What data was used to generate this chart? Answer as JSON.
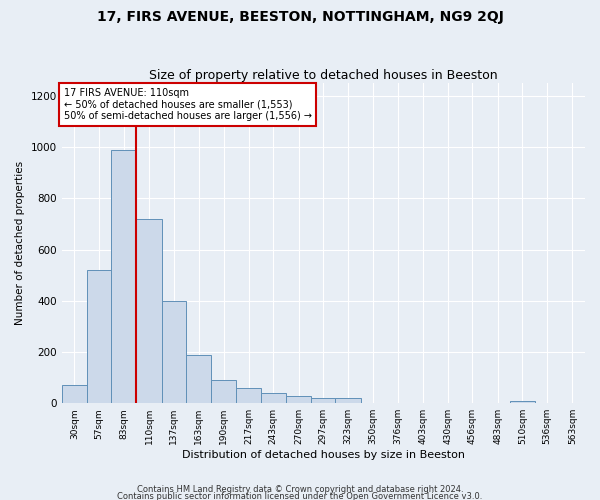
{
  "title": "17, FIRS AVENUE, BEESTON, NOTTINGHAM, NG9 2QJ",
  "subtitle": "Size of property relative to detached houses in Beeston",
  "xlabel": "Distribution of detached houses by size in Beeston",
  "ylabel": "Number of detached properties",
  "bar_color": "#ccd9ea",
  "bar_edge_color": "#6090b8",
  "background_color": "#e8eef5",
  "plot_bg_color": "#e8eef5",
  "grid_color": "#ffffff",
  "annotation_box_color": "#cc0000",
  "vline_color": "#cc0000",
  "bin_labels": [
    "30sqm",
    "57sqm",
    "83sqm",
    "110sqm",
    "137sqm",
    "163sqm",
    "190sqm",
    "217sqm",
    "243sqm",
    "270sqm",
    "297sqm",
    "323sqm",
    "350sqm",
    "376sqm",
    "403sqm",
    "430sqm",
    "456sqm",
    "483sqm",
    "510sqm",
    "536sqm",
    "563sqm"
  ],
  "bin_edges": [
    30,
    57,
    83,
    110,
    137,
    163,
    190,
    217,
    243,
    270,
    297,
    323,
    350,
    376,
    403,
    430,
    456,
    483,
    510,
    536,
    563,
    590
  ],
  "bar_heights": [
    70,
    520,
    990,
    720,
    400,
    190,
    90,
    60,
    40,
    30,
    20,
    20,
    0,
    0,
    0,
    0,
    0,
    0,
    10,
    0,
    0
  ],
  "vline_x": 110,
  "ylim": [
    0,
    1250
  ],
  "yticks": [
    0,
    200,
    400,
    600,
    800,
    1000,
    1200
  ],
  "annotation_title": "17 FIRS AVENUE: 110sqm",
  "annotation_line1": "← 50% of detached houses are smaller (1,553)",
  "annotation_line2": "50% of semi-detached houses are larger (1,556) →",
  "footnote1": "Contains HM Land Registry data © Crown copyright and database right 2024.",
  "footnote2": "Contains public sector information licensed under the Open Government Licence v3.0.",
  "title_fontsize": 10,
  "subtitle_fontsize": 9
}
